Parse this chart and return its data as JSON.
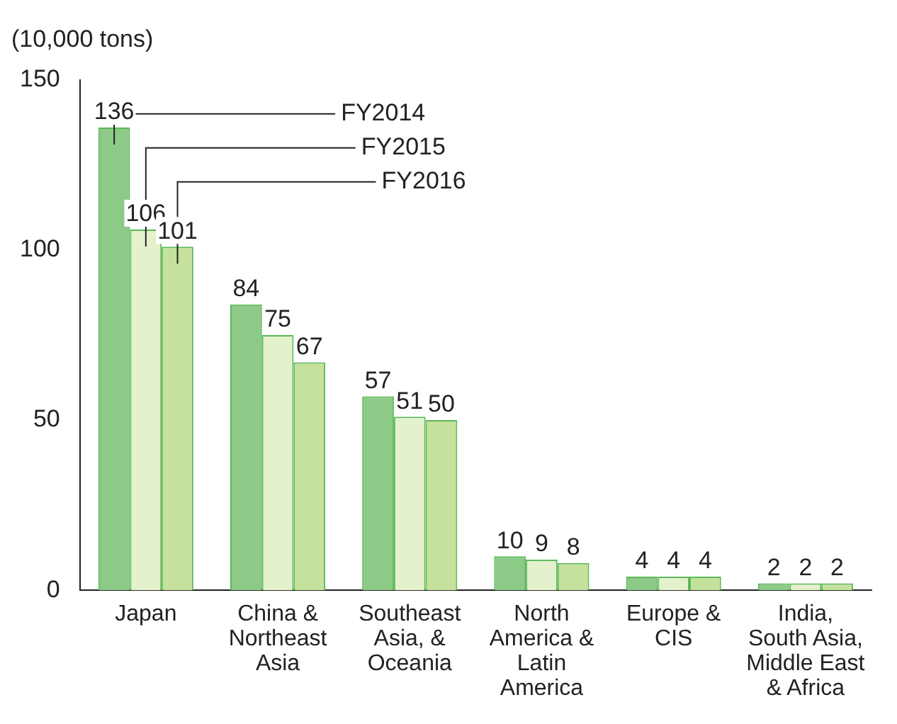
{
  "chart_data": {
    "type": "bar",
    "ylabel": "(10,000 tons)",
    "categories": [
      "Japan",
      "China & Northeast Asia",
      "Southeast Asia, & Oceania",
      "North America & Latin America",
      "Europe & CIS",
      "India, South Asia, Middle East & Africa"
    ],
    "series": [
      {
        "name": "FY2014",
        "color": "#8dca88",
        "values": [
          136,
          84,
          57,
          10,
          4,
          2
        ]
      },
      {
        "name": "FY2015",
        "color": "#e3f1cc",
        "values": [
          106,
          75,
          51,
          9,
          4,
          2
        ]
      },
      {
        "name": "FY2016",
        "color": "#c6e19c",
        "values": [
          101,
          67,
          50,
          8,
          4,
          2
        ]
      }
    ],
    "ylim": [
      0,
      150
    ],
    "yticks": [
      0,
      50,
      100,
      150
    ],
    "grid": false,
    "data_labels": true
  }
}
